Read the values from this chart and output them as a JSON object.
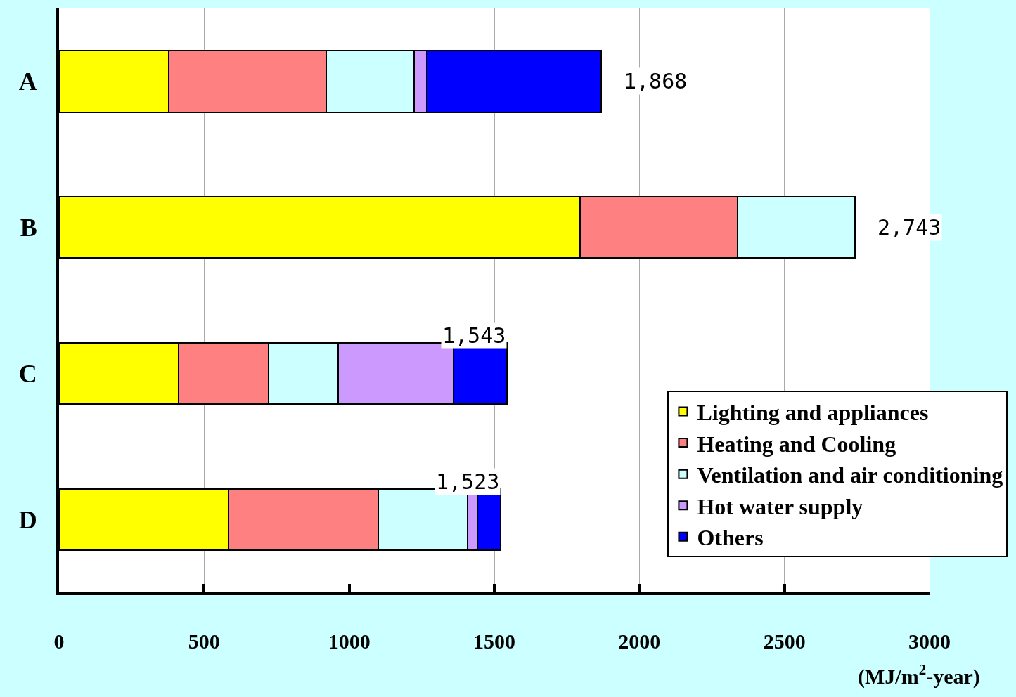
{
  "chart_data": {
    "type": "bar",
    "orientation": "horizontal",
    "stacked": true,
    "categories": [
      "A",
      "B",
      "C",
      "D"
    ],
    "series": [
      {
        "name": "Lighting and appliances",
        "color": "#ffff00",
        "values": [
          377,
          1796,
          413,
          585
        ]
      },
      {
        "name": "Heating and Cooling",
        "color": "#ff8080",
        "values": [
          543,
          542,
          308,
          514
        ]
      },
      {
        "name": "Ventilation and air conditioning",
        "color": "#ccffff",
        "values": [
          303,
          405,
          241,
          308
        ]
      },
      {
        "name": "Hot water supply",
        "color": "#cc99ff",
        "values": [
          45,
          null,
          397,
          36
        ]
      },
      {
        "name": "Others",
        "color": "#0000ff",
        "values": [
          600,
          null,
          184,
          80
        ]
      }
    ],
    "totals": [
      "1,868",
      "2,743",
      "1,543",
      "1,523"
    ],
    "xlim": [
      0,
      3000
    ],
    "xticks": [
      0,
      500,
      1000,
      1500,
      2000,
      2500,
      3000
    ],
    "xlabel": "(MJ/m$^{2}$-year)",
    "grid": "x",
    "legend": "bottom right"
  }
}
